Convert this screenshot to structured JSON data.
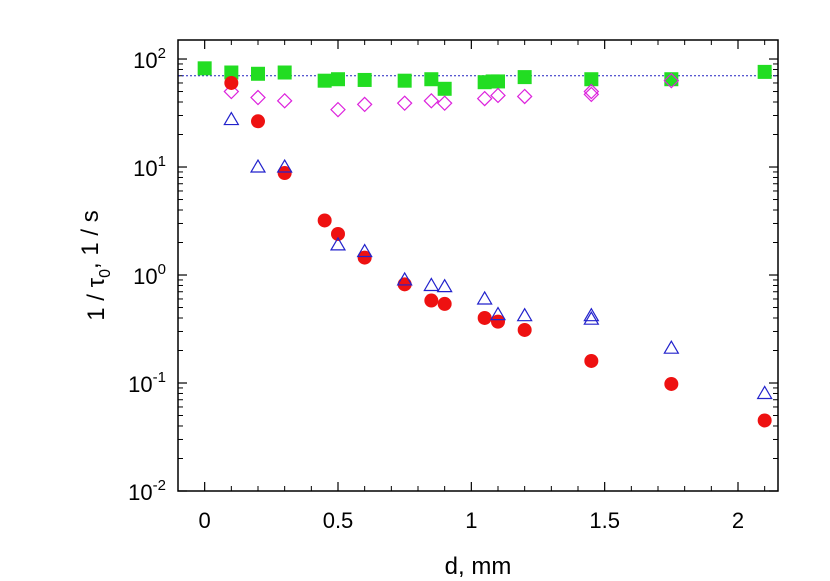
{
  "chart_data": {
    "type": "scatter",
    "title": "",
    "xlabel": "d, mm",
    "ylabel": {
      "prefix": "1 / ",
      "symbol": "τ",
      "subscript": "0",
      "suffix": ",  1 / s"
    },
    "xlim": [
      -0.1,
      2.15
    ],
    "ylim": [
      0.01,
      150
    ],
    "yscale": "log",
    "x_ticks": [
      0,
      0.5,
      1,
      1.5,
      2
    ],
    "x_tick_labels": [
      "0",
      "0.5",
      "1",
      "1.5",
      "2"
    ],
    "y_ticks": [
      {
        "value": 0.01,
        "base": "10",
        "exp": "-2"
      },
      {
        "value": 0.1,
        "base": "10",
        "exp": "-1"
      },
      {
        "value": 1,
        "base": "10",
        "exp": "0"
      },
      {
        "value": 10,
        "base": "10",
        "exp": "1"
      },
      {
        "value": 100,
        "base": "10",
        "exp": "2"
      }
    ],
    "reference_line": {
      "y": 70,
      "style": "dotted",
      "color": "#2020c0"
    },
    "series": [
      {
        "name": "green squares",
        "marker": "filled-square",
        "color": "#22dd22",
        "points": [
          [
            0,
            82
          ],
          [
            0.1,
            75
          ],
          [
            0.2,
            73
          ],
          [
            0.3,
            75
          ],
          [
            0.45,
            63
          ],
          [
            0.5,
            65
          ],
          [
            0.6,
            64
          ],
          [
            0.75,
            63
          ],
          [
            0.85,
            65
          ],
          [
            0.9,
            53
          ],
          [
            1.05,
            61
          ],
          [
            1.08,
            62
          ],
          [
            1.1,
            62
          ],
          [
            1.2,
            68
          ],
          [
            1.45,
            65
          ],
          [
            1.75,
            65
          ],
          [
            2.1,
            76
          ]
        ]
      },
      {
        "name": "magenta diamonds",
        "marker": "open-diamond",
        "color": "#dd22dd",
        "points": [
          [
            0.1,
            50
          ],
          [
            0.2,
            44
          ],
          [
            0.3,
            41
          ],
          [
            0.5,
            34
          ],
          [
            0.6,
            38
          ],
          [
            0.75,
            39
          ],
          [
            0.85,
            41
          ],
          [
            0.9,
            39
          ],
          [
            1.05,
            43
          ],
          [
            1.1,
            46
          ],
          [
            1.2,
            45
          ],
          [
            1.45,
            47
          ],
          [
            1.45,
            50
          ],
          [
            1.75,
            63
          ]
        ]
      },
      {
        "name": "red circles",
        "marker": "filled-circle",
        "color": "#ee1111",
        "points": [
          [
            0.1,
            60
          ],
          [
            0.2,
            26.5
          ],
          [
            0.3,
            8.8
          ],
          [
            0.45,
            3.2
          ],
          [
            0.5,
            2.4
          ],
          [
            0.6,
            1.45
          ],
          [
            0.75,
            0.82
          ],
          [
            0.85,
            0.58
          ],
          [
            0.9,
            0.54
          ],
          [
            1.05,
            0.4
          ],
          [
            1.1,
            0.37
          ],
          [
            1.2,
            0.31
          ],
          [
            1.45,
            0.16
          ],
          [
            1.75,
            0.098
          ],
          [
            2.1,
            0.045
          ]
        ]
      },
      {
        "name": "blue triangles",
        "marker": "open-triangle",
        "color": "#2222cc",
        "points": [
          [
            0.1,
            27.5
          ],
          [
            0.2,
            10
          ],
          [
            0.3,
            10
          ],
          [
            0.5,
            1.9
          ],
          [
            0.6,
            1.65
          ],
          [
            0.75,
            0.9
          ],
          [
            0.85,
            0.8
          ],
          [
            0.9,
            0.78
          ],
          [
            1.05,
            0.6
          ],
          [
            1.1,
            0.43
          ],
          [
            1.2,
            0.42
          ],
          [
            1.45,
            0.42
          ],
          [
            1.45,
            0.39
          ],
          [
            1.75,
            0.21
          ],
          [
            2.1,
            0.08
          ]
        ]
      }
    ]
  }
}
